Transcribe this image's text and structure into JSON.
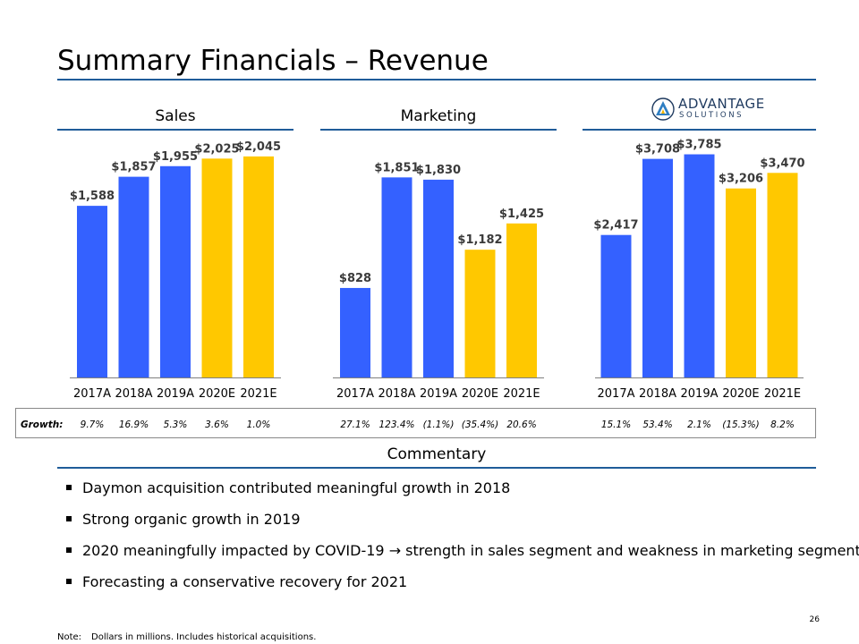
{
  "page": {
    "title": "Summary Financials – Revenue",
    "page_number": "26",
    "note_label": "Note:",
    "note_text": "Dollars in millions. Includes historical acquisitions."
  },
  "sections": {
    "sales": "Sales",
    "marketing": "Marketing",
    "commentary": "Commentary"
  },
  "logo": {
    "name_line1": "ADVANTAGE",
    "name_line2": "SOLUTIONS"
  },
  "growth": {
    "label": "Growth:",
    "sales": [
      "9.7%",
      "16.9%",
      "5.3%",
      "3.6%",
      "1.0%"
    ],
    "marketing": [
      "27.1%",
      "123.4%",
      "(1.1%)",
      "(35.4%)",
      "20.6%"
    ],
    "total": [
      "15.1%",
      "53.4%",
      "2.1%",
      "(15.3%)",
      "8.2%"
    ]
  },
  "commentary": [
    "Daymon acquisition contributed meaningful growth in 2018",
    "Strong organic growth in 2019",
    "2020 meaningfully impacted by COVID-19 → strength in sales segment and weakness in marketing segment",
    "Forecasting a conservative recovery for 2021"
  ],
  "colors": {
    "actual": "#3461ff",
    "estimate": "#ffc800",
    "rule": "#1f5c99"
  },
  "chart_data": [
    {
      "type": "bar",
      "title": "Sales",
      "categories": [
        "2017A",
        "2018A",
        "2019A",
        "2020E",
        "2021E"
      ],
      "values": [
        1588,
        1857,
        1955,
        2025,
        2045
      ],
      "labels": [
        "$1,588",
        "$1,857",
        "$1,955",
        "$2,025",
        "$2,045"
      ],
      "kinds": [
        "actual",
        "actual",
        "actual",
        "estimate",
        "estimate"
      ],
      "ylim": [
        0,
        2400
      ]
    },
    {
      "type": "bar",
      "title": "Marketing",
      "categories": [
        "2017A",
        "2018A",
        "2019A",
        "2020E",
        "2021E"
      ],
      "values": [
        828,
        1851,
        1830,
        1182,
        1425
      ],
      "labels": [
        "$828",
        "$1,851",
        "$1,830",
        "$1,182",
        "$1,425"
      ],
      "kinds": [
        "actual",
        "actual",
        "actual",
        "estimate",
        "estimate"
      ],
      "ylim": [
        0,
        2400
      ]
    },
    {
      "type": "bar",
      "title": "",
      "categories": [
        "2017A",
        "2018A",
        "2019A",
        "2020E",
        "2021E"
      ],
      "values": [
        2417,
        3708,
        3785,
        3206,
        3470
      ],
      "labels": [
        "$2,417",
        "$3,708",
        "$3,785",
        "$3,206",
        "$3,470"
      ],
      "kinds": [
        "actual",
        "actual",
        "actual",
        "estimate",
        "estimate"
      ],
      "ylim": [
        0,
        4400
      ]
    }
  ]
}
